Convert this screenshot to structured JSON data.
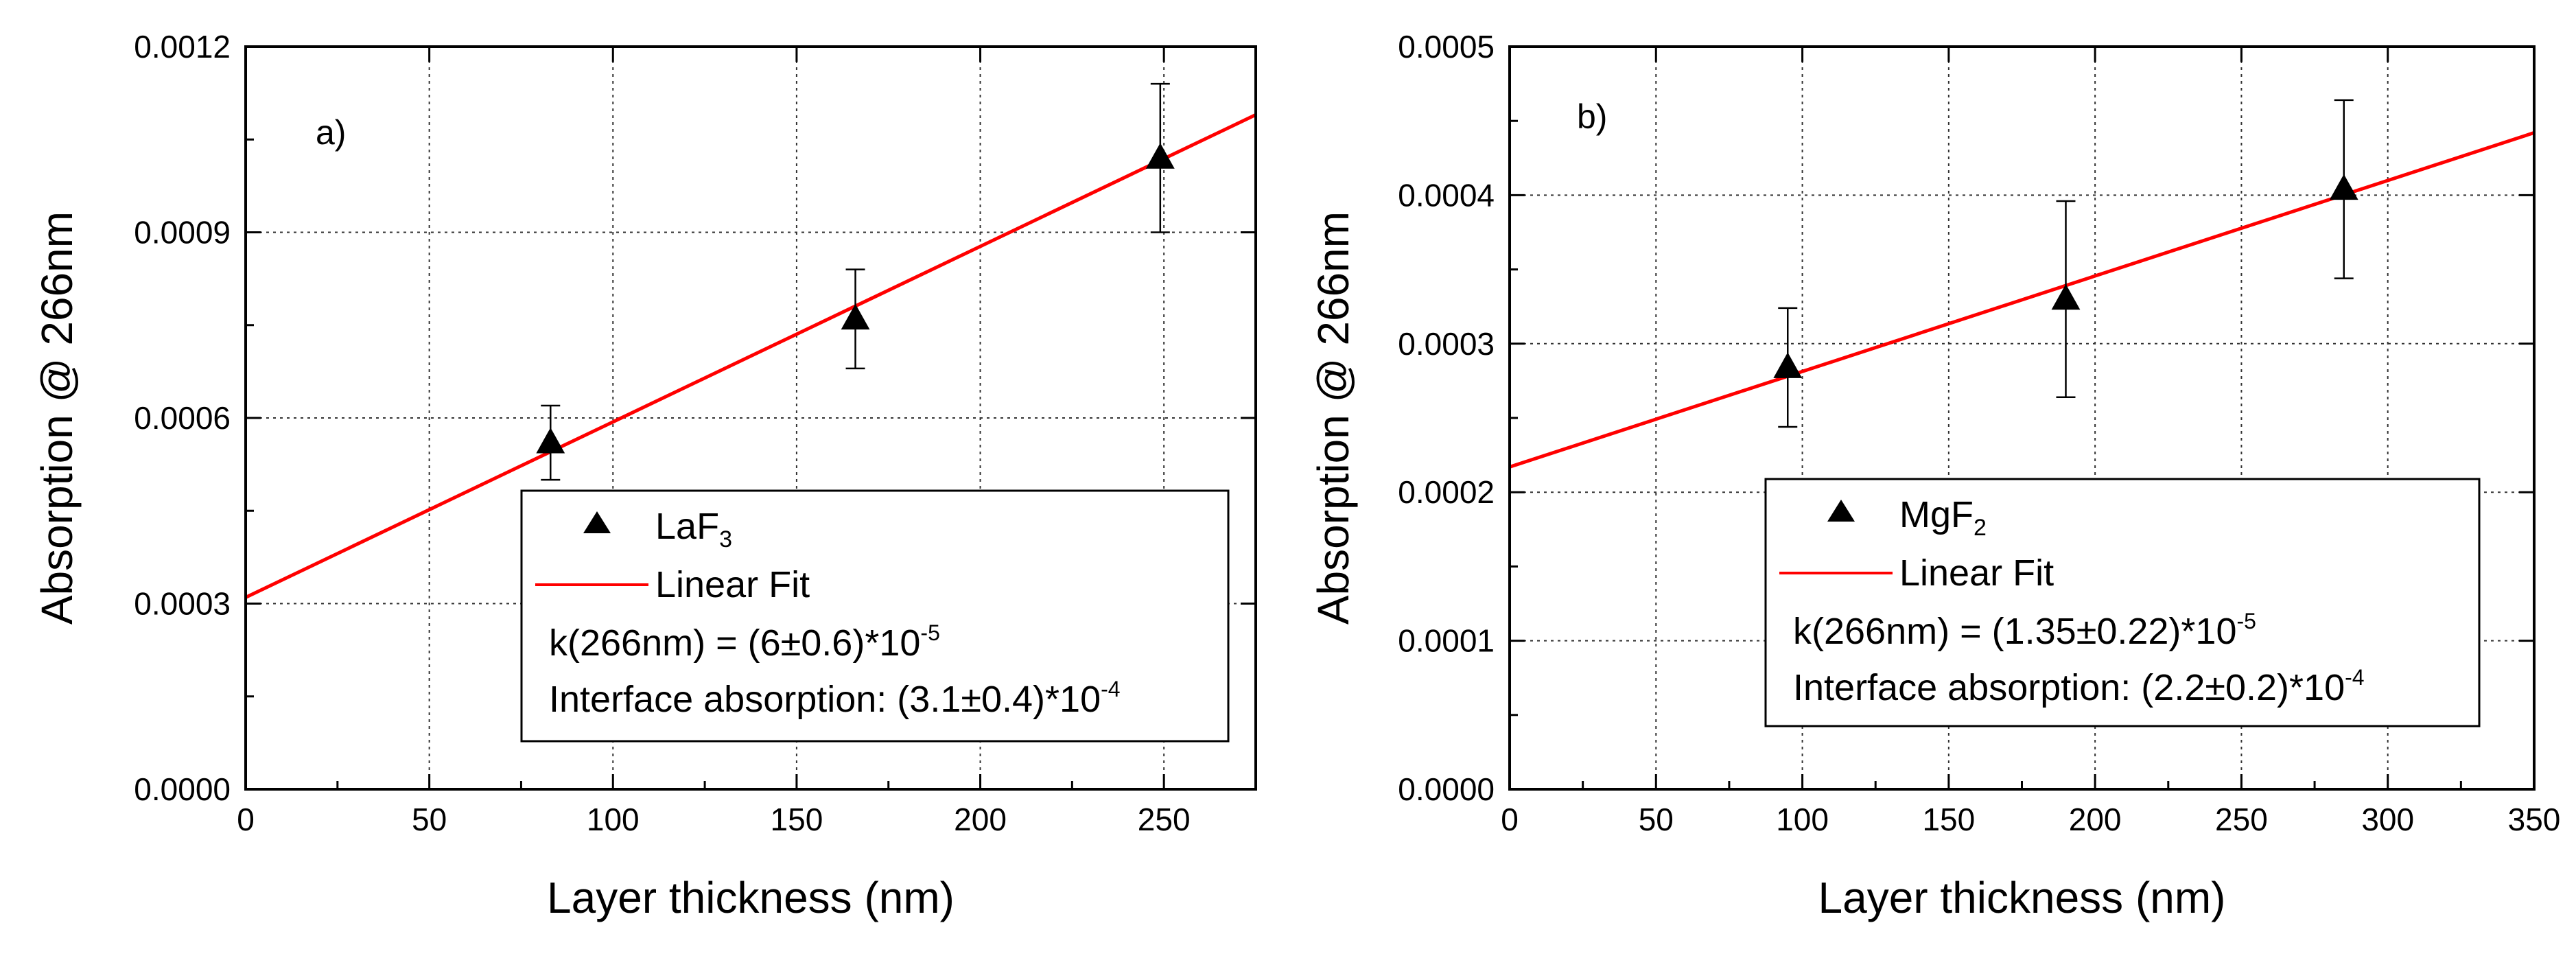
{
  "chart_data": [
    {
      "type": "scatter",
      "panel_label": "a)",
      "xlabel": "Layer thickness (nm)",
      "ylabel": "Absorption @ 266nm",
      "xlim": [
        0,
        275
      ],
      "ylim": [
        0,
        0.0012
      ],
      "xticks": [
        0,
        50,
        100,
        150,
        200,
        250
      ],
      "xtick_labels": [
        "0",
        "50",
        "100",
        "150",
        "200",
        "250"
      ],
      "yticks": [
        0,
        0.0003,
        0.0006,
        0.0009,
        0.0012
      ],
      "ytick_labels": [
        "0.0000",
        "0.0003",
        "0.0006",
        "0.0009",
        "0.0012"
      ],
      "grid": true,
      "series": [
        {
          "name": "LaF3",
          "x": [
            83,
            166,
            249
          ],
          "y": [
            0.00056,
            0.00076,
            0.00102
          ],
          "err": [
            6e-05,
            8e-05,
            0.00012
          ],
          "marker": "triangle",
          "color": "#000000"
        }
      ],
      "fit": {
        "name": "Linear Fit",
        "intercept": 0.00031,
        "slope": 2.836e-06,
        "color": "#ff0000"
      },
      "legend": {
        "position": "bottom-right",
        "series_label": {
          "base": "LaF",
          "sub": "3"
        },
        "fit_label": "Linear Fit",
        "k_text": {
          "base": "k(266nm) = (6±0.6)*10",
          "sup": "-5"
        },
        "interface_text": {
          "base": "Interface absorption: (3.1±0.4)*10",
          "sup": "-4"
        }
      }
    },
    {
      "type": "scatter",
      "panel_label": "b)",
      "xlabel": "Layer thickness (nm)",
      "ylabel": "Absorption @ 266nm",
      "xlim": [
        0,
        350
      ],
      "ylim": [
        0,
        0.0005
      ],
      "xticks": [
        0,
        50,
        100,
        150,
        200,
        250,
        300,
        350
      ],
      "xtick_labels": [
        "0",
        "50",
        "100",
        "150",
        "200",
        "250",
        "300",
        "350"
      ],
      "yticks": [
        0,
        0.0001,
        0.0002,
        0.0003,
        0.0004,
        0.0005
      ],
      "ytick_labels": [
        "0.0000",
        "0.0001",
        "0.0002",
        "0.0003",
        "0.0004",
        "0.0005"
      ],
      "grid": true,
      "series": [
        {
          "name": "MgF2",
          "x": [
            95,
            190,
            285
          ],
          "y": [
            0.000284,
            0.00033,
            0.000404
          ],
          "err": [
            4e-05,
            6.6e-05,
            6e-05
          ],
          "marker": "triangle",
          "color": "#000000"
        }
      ],
      "fit": {
        "name": "Linear Fit",
        "intercept": 0.000217,
        "slope": 6.43e-07,
        "color": "#ff0000"
      },
      "legend": {
        "position": "bottom-right",
        "series_label": {
          "base": "MgF",
          "sub": "2"
        },
        "fit_label": "Linear Fit",
        "k_text": {
          "base": "k(266nm) = (1.35±0.22)*10",
          "sup": "-5"
        },
        "interface_text": {
          "base": "Interface absorption: (2.2±0.2)*10",
          "sup": "-4"
        }
      }
    }
  ]
}
